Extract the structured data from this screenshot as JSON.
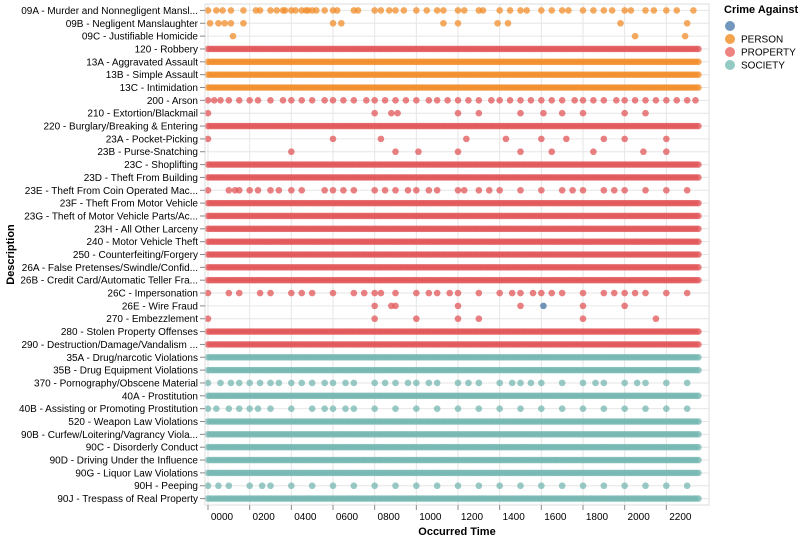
{
  "chart_data": {
    "type": "scatter",
    "title": "",
    "xlabel": "Occurred Time",
    "ylabel": "Description",
    "xlim": [
      0,
      2359
    ],
    "grid": true,
    "x_ticks": [
      "0000",
      "0200",
      "0400",
      "0600",
      "0800",
      "1000",
      "1200",
      "1400",
      "1600",
      "1800",
      "2000",
      "2200"
    ],
    "legend": {
      "title": "Crime Against",
      "position": "top-right",
      "entries": [
        {
          "name": "PERSON_BLUE_PLACEHOLDER",
          "label": "",
          "color": "#7396bd"
        },
        {
          "name": "PERSON",
          "label": "PERSON",
          "color": "#f4a24c"
        },
        {
          "name": "PROPERTY",
          "label": "PROPERTY",
          "color": "#ee8482"
        },
        {
          "name": "SOCIETY",
          "label": "SOCIETY",
          "color": "#93cac4"
        }
      ]
    },
    "series_colors": {
      "PERSON": "#f28e2b",
      "PROPERTY": "#e15759",
      "SOCIETY": "#76b7b2",
      "OTHER": "#4e79a7"
    },
    "categories": [
      {
        "label": "09A - Murder and Nonnegligent Mansl...",
        "group": "PERSON",
        "density": "sparse",
        "times": [
          0,
          40,
          70,
          110,
          170,
          230,
          250,
          300,
          330,
          360,
          370,
          400,
          420,
          450,
          470,
          480,
          500,
          520,
          560,
          600,
          620,
          700,
          720,
          800,
          830,
          870,
          900,
          940,
          1000,
          1050,
          1100,
          1130,
          1200,
          1230,
          1300,
          1320,
          1400,
          1450,
          1500,
          1530,
          1600,
          1650,
          1700,
          1730,
          1800,
          1850,
          1900,
          1940,
          2000,
          2030,
          2100,
          2140,
          2200,
          2250,
          2330
        ]
      },
      {
        "label": "09B - Negligent Manslaughter",
        "group": "PERSON",
        "density": "sparse",
        "times": [
          10,
          50,
          80,
          110,
          170,
          600,
          640,
          1130,
          1200,
          1390,
          1440,
          1980,
          2300
        ]
      },
      {
        "label": "09C - Justifiable Homicide",
        "group": "PERSON",
        "density": "sparse",
        "times": [
          120,
          2050,
          2290
        ]
      },
      {
        "label": "120 - Robbery",
        "group": "PROPERTY",
        "density": "dense"
      },
      {
        "label": "13A - Aggravated Assault",
        "group": "PERSON",
        "density": "dense"
      },
      {
        "label": "13B - Simple Assault",
        "group": "PERSON",
        "density": "dense"
      },
      {
        "label": "13C - Intimidation",
        "group": "PERSON",
        "density": "dense"
      },
      {
        "label": "200 - Arson",
        "group": "PROPERTY",
        "density": "sparse",
        "times": [
          0,
          30,
          60,
          100,
          150,
          200,
          240,
          300,
          360,
          400,
          450,
          500,
          560,
          600,
          650,
          700,
          760,
          800,
          850,
          900,
          950,
          1000,
          1060,
          1100,
          1150,
          1200,
          1250,
          1300,
          1360,
          1400,
          1450,
          1500,
          1550,
          1600,
          1650,
          1700,
          1760,
          1800,
          1850,
          1900,
          1960,
          2000,
          2050,
          2100,
          2150,
          2200,
          2250,
          2300,
          2340
        ]
      },
      {
        "label": "210 - Extortion/Blackmail",
        "group": "PROPERTY",
        "density": "sparse",
        "times": [
          0,
          800,
          880,
          910,
          1200,
          1300,
          1500,
          1610,
          1700,
          1800,
          2000,
          2100
        ]
      },
      {
        "label": "220 - Burglary/Breaking & Entering",
        "group": "PROPERTY",
        "density": "dense"
      },
      {
        "label": "23A - Pocket-Picking",
        "group": "PROPERTY",
        "density": "sparse",
        "times": [
          0,
          600,
          830,
          1240,
          1430,
          1600,
          1720,
          1900,
          2000,
          2200
        ]
      },
      {
        "label": "23B - Purse-Snatching",
        "group": "PROPERTY",
        "density": "sparse",
        "times": [
          400,
          900,
          1010,
          1200,
          1500,
          1650,
          1850,
          2090,
          2200
        ]
      },
      {
        "label": "23C - Shoplifting",
        "group": "PROPERTY",
        "density": "dense"
      },
      {
        "label": "23D - Theft From Building",
        "group": "PROPERTY",
        "density": "dense"
      },
      {
        "label": "23E - Theft From Coin Operated Mac...",
        "group": "PROPERTY",
        "density": "sparse",
        "times": [
          0,
          100,
          130,
          150,
          200,
          240,
          300,
          340,
          400,
          450,
          560,
          600,
          650,
          700,
          800,
          850,
          900,
          960,
          1000,
          1060,
          1100,
          1200,
          1230,
          1300,
          1350,
          1400,
          1500,
          1600,
          1700,
          1750,
          1800,
          1900,
          1950,
          2000,
          2100,
          2200,
          2300
        ]
      },
      {
        "label": "23F - Theft From Motor Vehicle",
        "group": "PROPERTY",
        "density": "dense"
      },
      {
        "label": "23G - Theft of Motor Vehicle Parts/Ac...",
        "group": "PROPERTY",
        "density": "dense"
      },
      {
        "label": "23H - All Other Larceny",
        "group": "PROPERTY",
        "density": "dense"
      },
      {
        "label": "240 - Motor Vehicle Theft",
        "group": "PROPERTY",
        "density": "dense"
      },
      {
        "label": "250 - Counterfeiting/Forgery",
        "group": "PROPERTY",
        "density": "dense"
      },
      {
        "label": "26A - False Pretenses/Swindle/Confid...",
        "group": "PROPERTY",
        "density": "dense"
      },
      {
        "label": "26B - Credit Card/Automatic Teller Fra...",
        "group": "PROPERTY",
        "density": "dense"
      },
      {
        "label": "26C - Impersonation",
        "group": "PROPERTY",
        "density": "sparse",
        "times": [
          0,
          100,
          150,
          250,
          300,
          400,
          450,
          500,
          600,
          700,
          750,
          800,
          830,
          900,
          1000,
          1060,
          1100,
          1160,
          1200,
          1300,
          1400,
          1460,
          1500,
          1560,
          1600,
          1650,
          1700,
          1800,
          1900,
          1950,
          2000,
          2050,
          2100,
          2200,
          2300
        ]
      },
      {
        "label": "26E - Wire Fraud",
        "group": "PROPERTY",
        "density": "sparse",
        "times": [
          800,
          880,
          900,
          1200,
          1500,
          1800,
          2000
        ],
        "other_times": [
          1610
        ]
      },
      {
        "label": "270 - Embezzlement",
        "group": "PROPERTY",
        "density": "sparse",
        "times": [
          0,
          800,
          1000,
          1200,
          1300,
          1800,
          2150
        ]
      },
      {
        "label": "280 - Stolen Property Offenses",
        "group": "PROPERTY",
        "density": "dense"
      },
      {
        "label": "290 - Destruction/Damage/Vandalism ...",
        "group": "PROPERTY",
        "density": "dense"
      },
      {
        "label": "35A - Drug/narcotic Violations",
        "group": "SOCIETY",
        "density": "dense"
      },
      {
        "label": "35B - Drug Equipment Violations",
        "group": "SOCIETY",
        "density": "dense"
      },
      {
        "label": "370 - Pornography/Obscene Material",
        "group": "SOCIETY",
        "density": "sparse",
        "times": [
          0,
          60,
          110,
          150,
          200,
          250,
          300,
          340,
          400,
          450,
          500,
          560,
          600,
          660,
          700,
          800,
          850,
          900,
          960,
          1000,
          1060,
          1100,
          1200,
          1250,
          1300,
          1400,
          1460,
          1500,
          1550,
          1600,
          1700,
          1800,
          1860,
          1900,
          2000,
          2060,
          2100,
          2200,
          2300
        ]
      },
      {
        "label": "40A - Prostitution",
        "group": "SOCIETY",
        "density": "dense"
      },
      {
        "label": "40B - Assisting or Promoting Prostitution",
        "group": "SOCIETY",
        "density": "sparse",
        "times": [
          0,
          40,
          100,
          150,
          200,
          240,
          300,
          400,
          500,
          560,
          600,
          660,
          700,
          800,
          900,
          1000,
          1100,
          1200,
          1300,
          1400,
          1500,
          1600,
          1700,
          1800,
          1900,
          2000,
          2100,
          2200,
          2300
        ]
      },
      {
        "label": "520 - Weapon Law Violations",
        "group": "SOCIETY",
        "density": "dense"
      },
      {
        "label": "90B - Curfew/Loitering/Vagrancy Viola...",
        "group": "SOCIETY",
        "density": "dense"
      },
      {
        "label": "90C - Disorderly Conduct",
        "group": "SOCIETY",
        "density": "dense"
      },
      {
        "label": "90D - Driving Under the Influence",
        "group": "SOCIETY",
        "density": "dense"
      },
      {
        "label": "90G - Liquor Law Violations",
        "group": "SOCIETY",
        "density": "dense"
      },
      {
        "label": "90H - Peeping",
        "group": "SOCIETY",
        "density": "sparse",
        "times": [
          0,
          50,
          100,
          200,
          260,
          300,
          400,
          500,
          600,
          700,
          800,
          900,
          1000,
          1100,
          1200,
          1300,
          1400,
          1500,
          1600,
          1700,
          1800,
          1900,
          2000,
          2100,
          2200,
          2300
        ]
      },
      {
        "label": "90J - Trespass of Real Property",
        "group": "SOCIETY",
        "density": "dense"
      }
    ]
  }
}
